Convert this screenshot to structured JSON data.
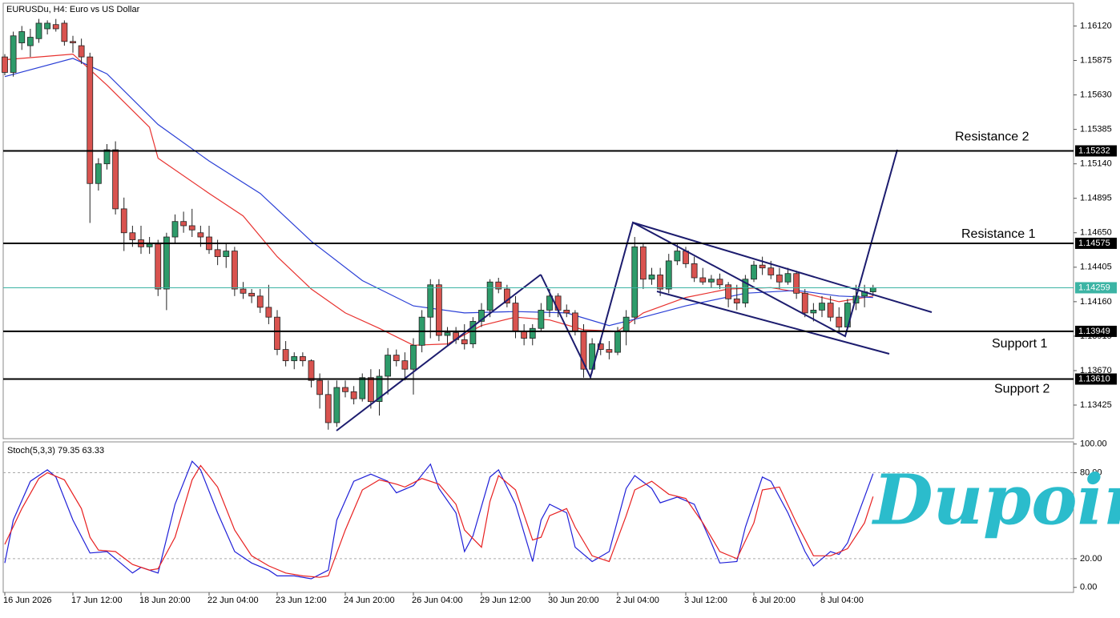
{
  "chart_data": [
    {
      "type": "candlestick",
      "title": "EURUSDu, H4:  Euro vs US Dollar",
      "up_color": "#2e9b6a",
      "down_color": "#d9534f",
      "ylim": [
        1.13186,
        1.16282
      ],
      "yticks": [
        {
          "value": 1.1612,
          "label": "1.16120"
        },
        {
          "value": 1.15875,
          "label": "1.15875"
        },
        {
          "value": 1.1563,
          "label": "1.15630"
        },
        {
          "value": 1.15385,
          "label": "1.15385"
        },
        {
          "value": 1.1514,
          "label": "1.15140"
        },
        {
          "value": 1.14895,
          "label": "1.14895"
        },
        {
          "value": 1.1465,
          "label": "1.14650"
        },
        {
          "value": 1.14405,
          "label": "1.14405"
        },
        {
          "value": 1.1416,
          "label": "1.14160"
        },
        {
          "value": 1.13915,
          "label": "1.13915"
        },
        {
          "value": 1.1367,
          "label": "1.13670"
        },
        {
          "value": 1.13425,
          "label": "1.13425"
        }
      ],
      "xticks": [
        {
          "value": 0,
          "label": "16 Jun 2026"
        },
        {
          "value": 8,
          "label": "17 Jun 12:00"
        },
        {
          "value": 16,
          "label": "18 Jun 20:00"
        },
        {
          "value": 24,
          "label": "22 Jun 04:00"
        },
        {
          "value": 32,
          "label": "23 Jun 12:00"
        },
        {
          "value": 40,
          "label": "24 Jun 20:00"
        },
        {
          "value": 48,
          "label": "26 Jun 04:00"
        },
        {
          "value": 56,
          "label": "29 Jun 12:00"
        },
        {
          "value": 64,
          "label": "30 Jun 20:00"
        },
        {
          "value": 72,
          "label": "2 Jul 04:00"
        },
        {
          "value": 80,
          "label": "3 Jul 12:00"
        },
        {
          "value": 88,
          "label": "6 Jul 20:00"
        },
        {
          "value": 96,
          "label": "8 Jul 04:00"
        }
      ],
      "candles": [
        [
          1.159,
          1.1592,
          1.1577,
          1.1579
        ],
        [
          1.1579,
          1.1608,
          1.1576,
          1.1605
        ],
        [
          1.16,
          1.1612,
          1.1595,
          1.1608
        ],
        [
          1.1598,
          1.161,
          1.159,
          1.1604
        ],
        [
          1.1603,
          1.1617,
          1.16,
          1.1614
        ],
        [
          1.161,
          1.1616,
          1.1606,
          1.1614
        ],
        [
          1.1613,
          1.1617,
          1.1608,
          1.161
        ],
        [
          1.1614,
          1.1616,
          1.1598,
          1.1601
        ],
        [
          1.1601,
          1.1605,
          1.1593,
          1.16
        ],
        [
          1.1598,
          1.1603,
          1.1585,
          1.159
        ],
        [
          1.159,
          1.1593,
          1.1472,
          1.15
        ],
        [
          1.15,
          1.1518,
          1.1495,
          1.1514
        ],
        [
          1.1514,
          1.1528,
          1.151,
          1.1524
        ],
        [
          1.1524,
          1.153,
          1.1478,
          1.1482
        ],
        [
          1.1482,
          1.149,
          1.1452,
          1.1465
        ],
        [
          1.1465,
          1.147,
          1.1455,
          1.146
        ],
        [
          1.146,
          1.147,
          1.145,
          1.1455
        ],
        [
          1.1455,
          1.1462,
          1.145,
          1.1457
        ],
        [
          1.1457,
          1.146,
          1.142,
          1.1425
        ],
        [
          1.1425,
          1.1465,
          1.141,
          1.1462
        ],
        [
          1.1462,
          1.1478,
          1.1458,
          1.1473
        ],
        [
          1.1473,
          1.148,
          1.1465,
          1.147
        ],
        [
          1.147,
          1.1482,
          1.1462,
          1.1467
        ],
        [
          1.1465,
          1.147,
          1.1455,
          1.1462
        ],
        [
          1.1462,
          1.147,
          1.145,
          1.1453
        ],
        [
          1.1453,
          1.146,
          1.1442,
          1.1448
        ],
        [
          1.1448,
          1.1458,
          1.144,
          1.1452
        ],
        [
          1.1452,
          1.1455,
          1.142,
          1.1425
        ],
        [
          1.1425,
          1.143,
          1.1418,
          1.1422
        ],
        [
          1.1422,
          1.1425,
          1.1415,
          1.142
        ],
        [
          1.142,
          1.1425,
          1.1408,
          1.1412
        ],
        [
          1.1412,
          1.1428,
          1.14,
          1.1405
        ],
        [
          1.1405,
          1.141,
          1.1378,
          1.1382
        ],
        [
          1.1382,
          1.1388,
          1.137,
          1.1374
        ],
        [
          1.1374,
          1.138,
          1.1368,
          1.1377
        ],
        [
          1.1377,
          1.138,
          1.137,
          1.1374
        ],
        [
          1.1374,
          1.1375,
          1.1355,
          1.136
        ],
        [
          1.136,
          1.1365,
          1.134,
          1.135
        ],
        [
          1.135,
          1.136,
          1.1325,
          1.133
        ],
        [
          1.133,
          1.136,
          1.1327,
          1.1355
        ],
        [
          1.1355,
          1.136,
          1.1348,
          1.1352
        ],
        [
          1.1352,
          1.1356,
          1.1343,
          1.1347
        ],
        [
          1.1347,
          1.1365,
          1.1345,
          1.1362
        ],
        [
          1.1362,
          1.1368,
          1.134,
          1.1345
        ],
        [
          1.1345,
          1.1368,
          1.1335,
          1.1363
        ],
        [
          1.1363,
          1.1383,
          1.135,
          1.1378
        ],
        [
          1.1378,
          1.1382,
          1.137,
          1.1374
        ],
        [
          1.1374,
          1.138,
          1.136,
          1.1368
        ],
        [
          1.1368,
          1.139,
          1.135,
          1.1385
        ],
        [
          1.1385,
          1.141,
          1.138,
          1.1405
        ],
        [
          1.1405,
          1.1432,
          1.139,
          1.1428
        ],
        [
          1.1428,
          1.1432,
          1.1388,
          1.1392
        ],
        [
          1.1392,
          1.1398,
          1.1385,
          1.1394
        ],
        [
          1.1394,
          1.1398,
          1.1386,
          1.1389
        ],
        [
          1.1389,
          1.14,
          1.1382,
          1.1386
        ],
        [
          1.1386,
          1.1405,
          1.1383,
          1.1402
        ],
        [
          1.1402,
          1.1415,
          1.1398,
          1.141
        ],
        [
          1.141,
          1.1432,
          1.1405,
          1.143
        ],
        [
          1.143,
          1.1433,
          1.1422,
          1.1425
        ],
        [
          1.1425,
          1.1428,
          1.1412,
          1.1415
        ],
        [
          1.1415,
          1.142,
          1.139,
          1.1395
        ],
        [
          1.1395,
          1.14,
          1.1385,
          1.139
        ],
        [
          1.139,
          1.14,
          1.1385,
          1.1397
        ],
        [
          1.1397,
          1.1415,
          1.1395,
          1.141
        ],
        [
          1.141,
          1.1425,
          1.1405,
          1.142
        ],
        [
          1.142,
          1.1422,
          1.1405,
          1.141
        ],
        [
          1.141,
          1.1414,
          1.1405,
          1.1408
        ],
        [
          1.1408,
          1.141,
          1.1392,
          1.1395
        ],
        [
          1.1395,
          1.14,
          1.1362,
          1.1368
        ],
        [
          1.1368,
          1.139,
          1.1365,
          1.1386
        ],
        [
          1.1386,
          1.139,
          1.1378,
          1.1382
        ],
        [
          1.1382,
          1.1388,
          1.1375,
          1.138
        ],
        [
          1.138,
          1.1398,
          1.1378,
          1.1395
        ],
        [
          1.1395,
          1.141,
          1.1385,
          1.1405
        ],
        [
          1.1405,
          1.1462,
          1.14,
          1.1455
        ],
        [
          1.1455,
          1.1458,
          1.1425,
          1.1432
        ],
        [
          1.1432,
          1.144,
          1.1428,
          1.1435
        ],
        [
          1.1435,
          1.144,
          1.142,
          1.1425
        ],
        [
          1.1425,
          1.145,
          1.1422,
          1.1445
        ],
        [
          1.1445,
          1.1458,
          1.1442,
          1.1452
        ],
        [
          1.1452,
          1.1455,
          1.144,
          1.1443
        ],
        [
          1.1443,
          1.1448,
          1.143,
          1.1433
        ],
        [
          1.1433,
          1.144,
          1.1428,
          1.143
        ],
        [
          1.143,
          1.1435,
          1.1426,
          1.1432
        ],
        [
          1.1432,
          1.1436,
          1.1425,
          1.1428
        ],
        [
          1.1428,
          1.143,
          1.1412,
          1.1418
        ],
        [
          1.1418,
          1.1428,
          1.141,
          1.1415
        ],
        [
          1.1415,
          1.1435,
          1.1412,
          1.1432
        ],
        [
          1.1432,
          1.1445,
          1.143,
          1.1442
        ],
        [
          1.1442,
          1.1448,
          1.1435,
          1.144
        ],
        [
          1.144,
          1.1445,
          1.1432,
          1.1435
        ],
        [
          1.1435,
          1.144,
          1.1425,
          1.143
        ],
        [
          1.143,
          1.144,
          1.1428,
          1.1436
        ],
        [
          1.1436,
          1.1438,
          1.1418,
          1.1422
        ],
        [
          1.1422,
          1.1425,
          1.1405,
          1.1408
        ],
        [
          1.1408,
          1.1415,
          1.1402,
          1.141
        ],
        [
          1.141,
          1.142,
          1.1405,
          1.1415
        ],
        [
          1.1415,
          1.142,
          1.1402,
          1.1405
        ],
        [
          1.1405,
          1.1412,
          1.1395,
          1.1398
        ],
        [
          1.1398,
          1.1418,
          1.1396,
          1.1415
        ],
        [
          1.1415,
          1.1428,
          1.141,
          1.142
        ],
        [
          1.142,
          1.1428,
          1.1412,
          1.1423
        ],
        [
          1.1423,
          1.1428,
          1.142,
          1.1426
        ]
      ],
      "series": [
        {
          "color": "#e8322f",
          "x": [
            0,
            8,
            12,
            17,
            18,
            24,
            28,
            32,
            36,
            40,
            44,
            48,
            52,
            56,
            60,
            64,
            68,
            72,
            75,
            80,
            85,
            90,
            94,
            98,
            102
          ],
          "values": [
            1.1588,
            1.1592,
            1.157,
            1.154,
            1.1518,
            1.1493,
            1.1477,
            1.1448,
            1.1425,
            1.1408,
            1.1397,
            1.1385,
            1.1386,
            1.1399,
            1.1405,
            1.1403,
            1.1396,
            1.1395,
            1.1408,
            1.1419,
            1.1425,
            1.1426,
            1.1422,
            1.1416,
            1.142
          ]
        },
        {
          "color": "#2a3fd6",
          "x": [
            0,
            8,
            12,
            18,
            24,
            30,
            36,
            42,
            48,
            54,
            60,
            66,
            71,
            75,
            80,
            87,
            93,
            98,
            102
          ],
          "values": [
            1.1576,
            1.1589,
            1.1578,
            1.1542,
            1.1516,
            1.1493,
            1.1459,
            1.1431,
            1.1413,
            1.1408,
            1.1409,
            1.1408,
            1.1399,
            1.1405,
            1.1413,
            1.1422,
            1.1424,
            1.142,
            1.1419
          ]
        }
      ],
      "levels": [
        {
          "value": 1.15232,
          "label": "1.15232",
          "name": "Resistance 2"
        },
        {
          "value": 1.14575,
          "label": "1.14575",
          "name": "Resistance 1"
        },
        {
          "value": 1.13949,
          "label": "1.13949",
          "name": "Support 1"
        },
        {
          "value": 1.1361,
          "label": "1.13610",
          "name": "Support 2"
        }
      ],
      "current_price": {
        "value": 1.14259,
        "label": "1.14259",
        "color": "#3cb4a4"
      }
    },
    {
      "type": "line",
      "title": "Stoch(5,3,3) 79.35 63.33",
      "ylim": [
        -3.5,
        101.5
      ],
      "yticks": [
        {
          "value": 100,
          "label": "100.00"
        },
        {
          "value": 80,
          "label": "80.00"
        },
        {
          "value": 20,
          "label": "20.00"
        },
        {
          "value": 0,
          "label": "0.00"
        }
      ],
      "dashed_levels": [
        80,
        20
      ],
      "series": [
        {
          "color": "#2020d8",
          "x": [
            0,
            1,
            3,
            5,
            6,
            8,
            10,
            12,
            13,
            15,
            16,
            18,
            20,
            22,
            23,
            25,
            27,
            29,
            31,
            32,
            34,
            36,
            38,
            39,
            41,
            43,
            45,
            46,
            48,
            50,
            51,
            53,
            54,
            55,
            57,
            58,
            60,
            62,
            63,
            64,
            66,
            67,
            69,
            71,
            73,
            74,
            76,
            77,
            79,
            81,
            83,
            84,
            86,
            87,
            89,
            90,
            92,
            94,
            95,
            97,
            98,
            99,
            101,
            102
          ],
          "values": [
            17,
            47,
            74,
            82,
            77,
            47,
            24,
            25,
            20,
            10,
            14,
            10,
            58,
            88,
            82,
            52,
            25,
            17,
            12,
            8,
            8,
            6,
            12,
            47,
            74,
            79,
            74,
            66,
            71,
            86,
            69,
            52,
            25,
            36,
            77,
            82,
            58,
            18,
            47,
            58,
            52,
            28,
            18,
            25,
            69,
            78,
            69,
            59,
            63,
            58,
            31,
            17,
            18,
            42,
            77,
            74,
            52,
            25,
            15,
            25,
            23,
            31,
            63,
            79.35
          ]
        },
        {
          "color": "#e82020",
          "x": [
            0,
            2,
            4,
            5,
            7,
            9,
            10,
            11,
            13,
            15,
            17,
            18,
            20,
            22,
            23,
            25,
            27,
            29,
            31,
            33,
            35,
            37,
            38,
            40,
            42,
            44,
            46,
            47,
            49,
            51,
            53,
            54,
            56,
            57,
            58,
            60,
            62,
            63,
            64,
            66,
            67,
            69,
            71,
            73,
            74,
            76,
            78,
            80,
            82,
            84,
            86,
            88,
            89,
            91,
            93,
            95,
            97,
            99,
            101,
            102
          ],
          "values": [
            30,
            55,
            76,
            80,
            75,
            55,
            35,
            26,
            25,
            16,
            12,
            13,
            35,
            75,
            85,
            70,
            40,
            22,
            15,
            10,
            8,
            7,
            8,
            40,
            68,
            75,
            72,
            70,
            76,
            72,
            58,
            40,
            28,
            60,
            78,
            68,
            33,
            35,
            50,
            55,
            42,
            22,
            18,
            50,
            68,
            74,
            65,
            62,
            45,
            25,
            20,
            45,
            68,
            70,
            45,
            22,
            22,
            27,
            45,
            63.33
          ]
        }
      ]
    }
  ],
  "watermark": {
    "text": "Dupoin",
    "color": "#2bbccc"
  }
}
